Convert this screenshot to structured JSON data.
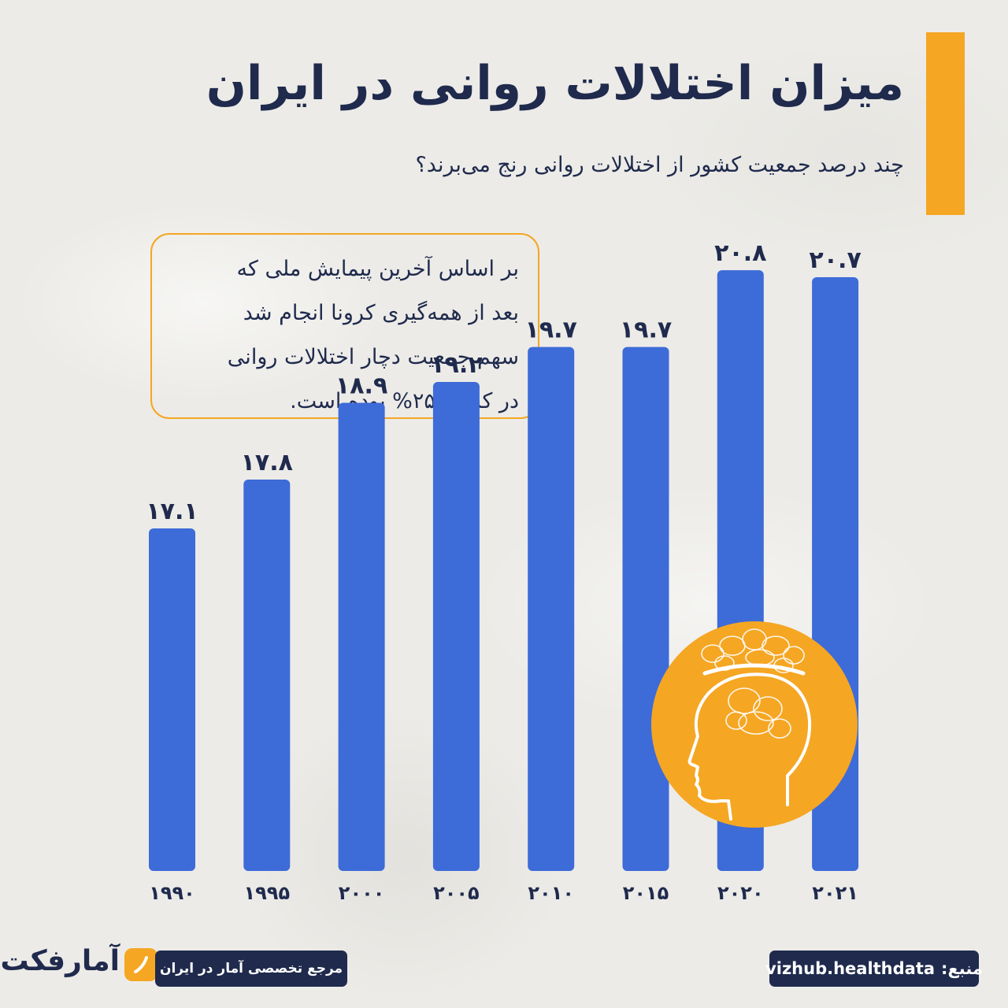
{
  "title": "میزان اختلالات روانی در ایران",
  "subtitle": "چند درصد جمعیت کشور از اختلالات روانی رنج می‌برند؟",
  "note": {
    "lines": [
      "بر اساس آخرین پیمایش ملی که",
      "بعد از همه‌گیری کرونا انجام شد",
      "سهم جمعیت دچار اختلالات روانی",
      "در کشور ۲۵% بوده است."
    ]
  },
  "chart_data": {
    "type": "bar",
    "categories": [
      "۱۹۹۰",
      "۱۹۹۵",
      "۲۰۰۰",
      "۲۰۰۵",
      "۲۰۱۰",
      "۲۰۱۵",
      "۲۰۲۰",
      "۲۰۲۱"
    ],
    "values": [
      17.1,
      17.8,
      18.9,
      19.2,
      19.7,
      19.7,
      20.8,
      20.7
    ],
    "value_labels": [
      "۱۷.۱",
      "۱۷.۸",
      "۱۸.۹",
      "۱۹.۲",
      "۱۹.۷",
      "۱۹.۷",
      "۲۰.۸",
      "۲۰.۷"
    ],
    "title": "",
    "xlabel": "",
    "ylabel": "",
    "grid": false,
    "bar_color": "#3d6bd8"
  },
  "footer": {
    "logo_text": "آمارفکت",
    "tagline": "مرجع تخصصی آمار در ایران",
    "source_label": "منبع:",
    "source_value": "vizhub.healthdata"
  },
  "colors": {
    "accent": "#f5a623",
    "navy": "#1f2a4d",
    "bar": "#3d6bd8",
    "background": "#ecebe7"
  },
  "icons": {
    "illustration": "head-tangled-thoughts-icon"
  }
}
